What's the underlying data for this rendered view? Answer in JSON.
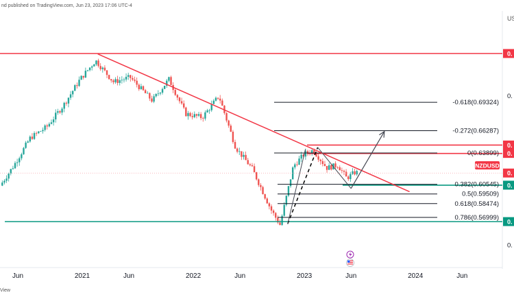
{
  "header": {
    "published": "nd published on TradingView.com, Jun 23, 2023 17:06 UTC-4",
    "currency": "US"
  },
  "footer": {
    "label": "View"
  },
  "chart_data": {
    "type": "candlestick",
    "symbol": "NZDUSD",
    "timeframe": "weekly",
    "x_range": [
      "2020-04",
      "2024-06"
    ],
    "y_range": [
      0.54,
      0.76
    ],
    "x_ticks": [
      {
        "label": "Jun",
        "t": 2020.42
      },
      {
        "label": "2021",
        "t": 2021.0
      },
      {
        "label": "Jun",
        "t": 2021.42
      },
      {
        "label": "2022",
        "t": 2022.0
      },
      {
        "label": "Jun",
        "t": 2022.42
      },
      {
        "label": "2023",
        "t": 2023.0
      },
      {
        "label": "Jun",
        "t": 2023.42
      },
      {
        "label": "2024",
        "t": 2024.0
      },
      {
        "label": "Jun",
        "t": 2024.42
      }
    ],
    "y_tick_labels": [
      {
        "label": "0.",
        "v": 0.7
      },
      {
        "label": "0.",
        "v": 0.54
      }
    ],
    "colors": {
      "up": "#26a69a",
      "down": "#ef5350",
      "resistance": "#f23645",
      "support": "#089981",
      "fib": "#131722",
      "arrow": "#434651"
    },
    "price_anchors": [
      [
        2020.28,
        0.604
      ],
      [
        2020.4,
        0.625
      ],
      [
        2020.55,
        0.655
      ],
      [
        2020.7,
        0.667
      ],
      [
        2020.85,
        0.69
      ],
      [
        2021.0,
        0.718
      ],
      [
        2021.14,
        0.738
      ],
      [
        2021.3,
        0.715
      ],
      [
        2021.45,
        0.72
      ],
      [
        2021.65,
        0.695
      ],
      [
        2021.8,
        0.718
      ],
      [
        2021.95,
        0.681
      ],
      [
        2022.1,
        0.677
      ],
      [
        2022.25,
        0.7
      ],
      [
        2022.4,
        0.645
      ],
      [
        2022.55,
        0.622
      ],
      [
        2022.72,
        0.578
      ],
      [
        2022.8,
        0.562
      ],
      [
        2022.92,
        0.625
      ],
      [
        2023.02,
        0.638
      ],
      [
        2023.1,
        0.642
      ],
      [
        2023.22,
        0.623
      ],
      [
        2023.32,
        0.626
      ],
      [
        2023.4,
        0.612
      ],
      [
        2023.47,
        0.618
      ]
    ],
    "horizontal_levels": [
      {
        "name": "resistance-top",
        "value": 0.7455,
        "label": "0.",
        "color": "#f23645"
      },
      {
        "name": "resistance-1",
        "value": 0.6475,
        "label": "0.",
        "color": "#f23645"
      },
      {
        "name": "resistance-2",
        "value": 0.6385,
        "label": "0.",
        "color": "#f23645"
      },
      {
        "name": "current-price",
        "value": 0.6175,
        "label": "0.",
        "color": "#f23645"
      },
      {
        "name": "support-1",
        "value": 0.6045,
        "label": "0.",
        "color": "#089981"
      },
      {
        "name": "support-bottom",
        "value": 0.5655,
        "label": "0.",
        "color": "#089981"
      }
    ],
    "fib_levels": [
      {
        "ratio": "-0.618",
        "value": "0.69324",
        "label": "-0.618(0.69324)",
        "v": 0.69324
      },
      {
        "ratio": "-0.272",
        "value": "0.66287",
        "label": "-0.272(0.66287)",
        "v": 0.66287
      },
      {
        "ratio": "0",
        "value": "0.63899",
        "label": "0(0.63899)",
        "v": 0.63899
      },
      {
        "ratio": "0.382",
        "value": "0.60545",
        "label": "0.382(0.60545)",
        "v": 0.60545
      },
      {
        "ratio": "0.5",
        "value": "0.59509",
        "label": "0.5(0.59509)",
        "v": 0.59509
      },
      {
        "ratio": "0.618",
        "value": "0.58474",
        "label": "0.618(0.58474)",
        "v": 0.58474
      },
      {
        "ratio": "0.786",
        "value": "0.56999",
        "label": "0.786(0.56999)",
        "v": 0.56999
      }
    ],
    "trendline": {
      "from": [
        2021.14,
        0.745
      ],
      "to": [
        2023.7,
        0.599
      ]
    },
    "projection_path": [
      [
        2023.42,
        0.601
      ],
      [
        2023.72,
        0.662
      ]
    ],
    "dashed_swing": [
      [
        2022.8,
        0.563
      ],
      [
        2023.12,
        0.645
      ]
    ],
    "solid_swing": [
      [
        2023.12,
        0.645
      ],
      [
        2023.42,
        0.601
      ]
    ]
  }
}
